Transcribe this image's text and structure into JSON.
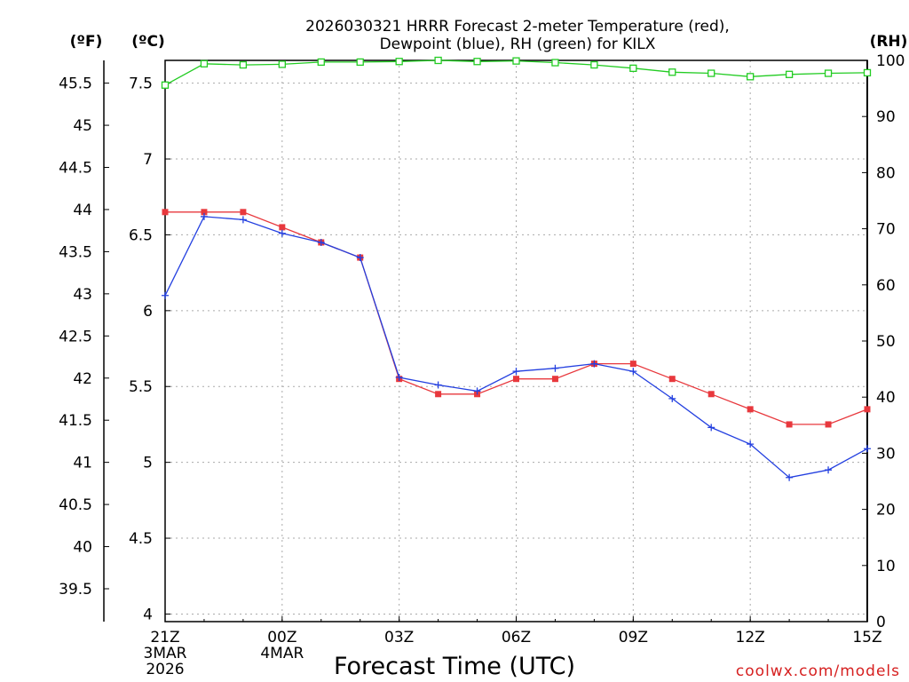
{
  "chart_data": {
    "type": "line",
    "title_line1": "2026030321 HRRR Forecast 2-meter Temperature (red),",
    "title_line2": "Dewpoint (blue), RH (green) for KILX",
    "xlabel": "Forecast Time (UTC)",
    "credit": "coolwx.com/models",
    "units": {
      "fahrenheit": "(ºF)",
      "celsius": "(ºC)",
      "rh": "(RH)"
    },
    "x_hours": [
      0,
      1,
      2,
      3,
      4,
      5,
      6,
      7,
      8,
      9,
      10,
      11,
      12,
      13,
      14,
      15,
      16,
      17,
      18
    ],
    "x_ticks": [
      {
        "hour": 0,
        "lines": [
          "21Z",
          "3MAR",
          "2026"
        ]
      },
      {
        "hour": 3,
        "lines": [
          "00Z",
          "4MAR"
        ]
      },
      {
        "hour": 6,
        "lines": [
          "03Z"
        ]
      },
      {
        "hour": 9,
        "lines": [
          "06Z"
        ]
      },
      {
        "hour": 12,
        "lines": [
          "09Z"
        ]
      },
      {
        "hour": 15,
        "lines": [
          "12Z"
        ]
      },
      {
        "hour": 18,
        "lines": [
          "15Z"
        ]
      }
    ],
    "xlim": [
      0,
      18
    ],
    "celsius_ylim": [
      3.95,
      7.65
    ],
    "celsius_ticks": [
      "4",
      "4.5",
      "5",
      "5.5",
      "6",
      "6.5",
      "7",
      "7.5"
    ],
    "fahrenheit_ticks": [
      "39.5",
      "40",
      "40.5",
      "41",
      "41.5",
      "42",
      "42.5",
      "43",
      "43.5",
      "44",
      "44.5",
      "45",
      "45.5"
    ],
    "rh_ylim": [
      0,
      100
    ],
    "rh_ticks": [
      "0",
      "10",
      "20",
      "30",
      "40",
      "50",
      "60",
      "70",
      "80",
      "90",
      "100"
    ],
    "series": [
      {
        "name": "Temperature",
        "color": "#e8383d",
        "marker": "square",
        "values_c": [
          6.65,
          6.65,
          6.65,
          6.55,
          6.45,
          6.35,
          5.55,
          5.45,
          5.45,
          5.55,
          5.55,
          5.65,
          5.65,
          5.55,
          5.45,
          5.35,
          5.25,
          5.25,
          5.35
        ]
      },
      {
        "name": "Dewpoint",
        "color": "#2440e0",
        "marker": "plus",
        "values_c": [
          6.1,
          6.62,
          6.6,
          6.51,
          6.45,
          6.35,
          5.56,
          5.51,
          5.47,
          5.6,
          5.62,
          5.65,
          5.6,
          5.42,
          5.23,
          5.12,
          4.9,
          4.95,
          5.09
        ]
      },
      {
        "name": "RH",
        "color": "#22cc22",
        "marker": "open-square",
        "values_rh": [
          95.6,
          99.4,
          99.2,
          99.3,
          99.7,
          99.7,
          99.8,
          100,
          99.8,
          99.9,
          99.6,
          99.2,
          98.6,
          97.9,
          97.7,
          97.1,
          97.5,
          97.7,
          97.8
        ]
      }
    ]
  }
}
